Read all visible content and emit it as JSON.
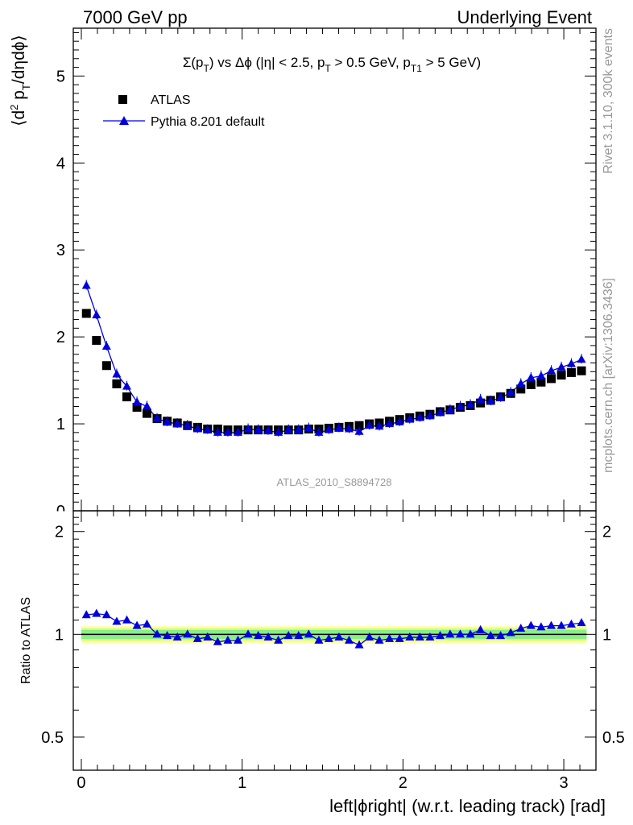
{
  "header": {
    "left": "7000 GeV pp",
    "right": "Underlying Event"
  },
  "side_labels": {
    "rivet": "Rivet 3.1.10,  300k events",
    "mcplots": "mcplots.cern.ch [arXiv:1306.3436]"
  },
  "chart_data": [
    {
      "type": "scatter",
      "title": "Σ(p_T) vs Δϕ (|η| < 2.5, p_T > 0.5 GeV, p_T1 > 5 GeV)",
      "ylabel": "⟨d² p_T/dηdϕ⟩",
      "watermark": "ATLAS_2010_S8894728",
      "xlim": [
        -0.05,
        3.2
      ],
      "ylim": [
        0,
        5.55
      ],
      "y_ticks": [
        1,
        2,
        3,
        4,
        5
      ],
      "y_tick_labels": [
        "1",
        "2",
        "3",
        "4",
        "5"
      ],
      "legend": [
        "ATLAS",
        "Pythia 8.201 default"
      ],
      "legend_position": "top-left",
      "x": [
        0.0314,
        0.0942,
        0.157,
        0.22,
        0.283,
        0.346,
        0.408,
        0.471,
        0.534,
        0.597,
        0.66,
        0.723,
        0.785,
        0.848,
        0.911,
        0.974,
        1.037,
        1.1,
        1.162,
        1.225,
        1.288,
        1.351,
        1.414,
        1.477,
        1.539,
        1.602,
        1.665,
        1.728,
        1.791,
        1.853,
        1.916,
        1.979,
        2.042,
        2.105,
        2.168,
        2.231,
        2.293,
        2.356,
        2.419,
        2.482,
        2.545,
        2.607,
        2.67,
        2.733,
        2.796,
        2.859,
        2.922,
        2.985,
        3.047,
        3.11
      ],
      "series": [
        {
          "name": "ATLAS",
          "color": "#000000",
          "marker": "square",
          "values": [
            2.27,
            1.96,
            1.67,
            1.46,
            1.31,
            1.19,
            1.12,
            1.06,
            1.03,
            1.01,
            0.98,
            0.96,
            0.94,
            0.94,
            0.93,
            0.93,
            0.93,
            0.93,
            0.93,
            0.93,
            0.93,
            0.93,
            0.94,
            0.94,
            0.95,
            0.96,
            0.97,
            0.98,
            1.0,
            1.01,
            1.03,
            1.05,
            1.07,
            1.09,
            1.11,
            1.14,
            1.16,
            1.19,
            1.21,
            1.24,
            1.27,
            1.31,
            1.35,
            1.4,
            1.45,
            1.48,
            1.52,
            1.56,
            1.59,
            1.61
          ]
        },
        {
          "name": "Pythia 8.201 default",
          "color": "#0000dd",
          "marker": "triangle",
          "values": [
            2.59,
            2.25,
            1.89,
            1.57,
            1.43,
            1.25,
            1.2,
            1.06,
            1.02,
            1.0,
            0.98,
            0.94,
            0.93,
            0.9,
            0.9,
            0.9,
            0.94,
            0.93,
            0.92,
            0.9,
            0.93,
            0.93,
            0.95,
            0.9,
            0.93,
            0.95,
            0.94,
            0.91,
            0.98,
            0.97,
            1.0,
            1.02,
            1.05,
            1.07,
            1.09,
            1.13,
            1.16,
            1.2,
            1.22,
            1.28,
            1.26,
            1.3,
            1.36,
            1.46,
            1.53,
            1.55,
            1.61,
            1.65,
            1.69,
            1.74
          ]
        }
      ]
    },
    {
      "type": "scatter",
      "ylabel": "Ratio to ATLAS",
      "xlabel": "left|ϕright| (w.r.t. leading track) [rad]",
      "xlim": [
        -0.05,
        3.2
      ],
      "ylim": [
        0.4,
        2.3
      ],
      "x_ticks": [
        0,
        1,
        2,
        3
      ],
      "x_tick_labels": [
        "0",
        "1",
        "2",
        "3"
      ],
      "y_ticks": [
        0.5,
        1,
        2
      ],
      "y_tick_labels": [
        "0.5",
        "1",
        "2"
      ],
      "band_inner": [
        0.97,
        1.03
      ],
      "band_middle": [
        0.96,
        1.04
      ],
      "band_outer": [
        0.945,
        1.055
      ],
      "reference_line": 1.0,
      "series": [
        {
          "name": "Pythia 8.201 default",
          "color": "#0000dd",
          "marker": "triangle",
          "values": [
            1.14,
            1.15,
            1.14,
            1.09,
            1.1,
            1.06,
            1.07,
            1.0,
            0.99,
            0.98,
            1.0,
            0.97,
            0.98,
            0.95,
            0.96,
            0.96,
            1.0,
            0.99,
            0.98,
            0.96,
            0.99,
            0.99,
            1.0,
            0.96,
            0.97,
            0.98,
            0.96,
            0.93,
            0.98,
            0.96,
            0.97,
            0.97,
            0.98,
            0.98,
            0.98,
            0.99,
            1.0,
            1.0,
            1.0,
            1.03,
            0.99,
            0.99,
            1.01,
            1.04,
            1.06,
            1.05,
            1.06,
            1.06,
            1.07,
            1.08
          ]
        }
      ]
    }
  ]
}
